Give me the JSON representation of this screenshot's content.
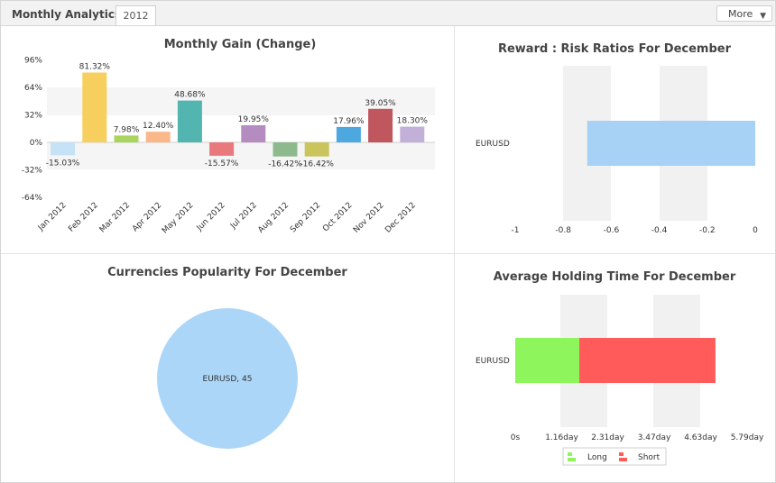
{
  "header": {
    "title": "Monthly Analytics",
    "tab_label": "2012",
    "more_label": "More"
  },
  "chart_data": [
    {
      "type": "bar",
      "title": "Monthly Gain (Change)",
      "categories": [
        "Jan 2012",
        "Feb 2012",
        "Mar 2012",
        "Apr 2012",
        "May 2012",
        "Jun 2012",
        "Jul 2012",
        "Aug 2012",
        "Sep 2012",
        "Oct 2012",
        "Nov 2012",
        "Dec 2012"
      ],
      "values": [
        -15.03,
        81.32,
        7.98,
        12.4,
        48.68,
        -15.57,
        19.95,
        -16.42,
        -16.42,
        17.96,
        39.05,
        18.3
      ],
      "value_labels": [
        "-15.03%",
        "81.32%",
        "7.98%",
        "12.40%",
        "48.68%",
        "-15.57%",
        "19.95%",
        "-16.42%",
        "-16.42%",
        "17.96%",
        "39.05%",
        "18.30%"
      ],
      "colors": [
        "#c6e2f7",
        "#f7cf5e",
        "#a9d45d",
        "#f9b78a",
        "#52b5b0",
        "#e8797d",
        "#b48cbf",
        "#8dba8d",
        "#c9c45c",
        "#4da8e0",
        "#c0565e",
        "#c2b0d8"
      ],
      "yticks": [
        96,
        64,
        32,
        0,
        -32,
        -64
      ],
      "ytick_labels": [
        "96%",
        "64%",
        "32%",
        "0%",
        "-32%",
        "-64%"
      ],
      "ylim": [
        -64,
        96
      ]
    },
    {
      "type": "bar",
      "orientation": "horizontal",
      "title": "Reward : Risk Ratios For December",
      "categories": [
        "EURUSD"
      ],
      "values": [
        -0.7
      ],
      "colors": [
        "#a7d1f5"
      ],
      "xticks": [
        -1,
        -0.8,
        -0.6,
        -0.4,
        -0.2,
        0
      ],
      "xtick_labels": [
        "-1",
        "-0.8",
        "-0.6",
        "-0.4",
        "-0.2",
        "0"
      ],
      "xlim": [
        -1,
        0
      ]
    },
    {
      "type": "pie",
      "title": "Currencies Popularity For December",
      "labels": [
        "EURUSD"
      ],
      "values": [
        45
      ],
      "slice_labels": [
        "EURUSD, 45"
      ],
      "colors": [
        "#acd6f8"
      ]
    },
    {
      "type": "bar",
      "orientation": "horizontal",
      "stacked": true,
      "title": "Average Holding Time For December",
      "categories": [
        "EURUSD"
      ],
      "series": [
        {
          "name": "Long",
          "values": [
            1.6
          ],
          "color": "#8ef55c"
        },
        {
          "name": "Short",
          "values": [
            3.4
          ],
          "color": "#ff5b5b"
        }
      ],
      "xticks": [
        0,
        1.16,
        2.31,
        3.47,
        4.63,
        5.79
      ],
      "xtick_labels": [
        "0s",
        "1.16day",
        "2.31day",
        "3.47day",
        "4.63day",
        "5.79day"
      ],
      "xlim": [
        0,
        5.79
      ],
      "legend_position": "bottom"
    }
  ]
}
